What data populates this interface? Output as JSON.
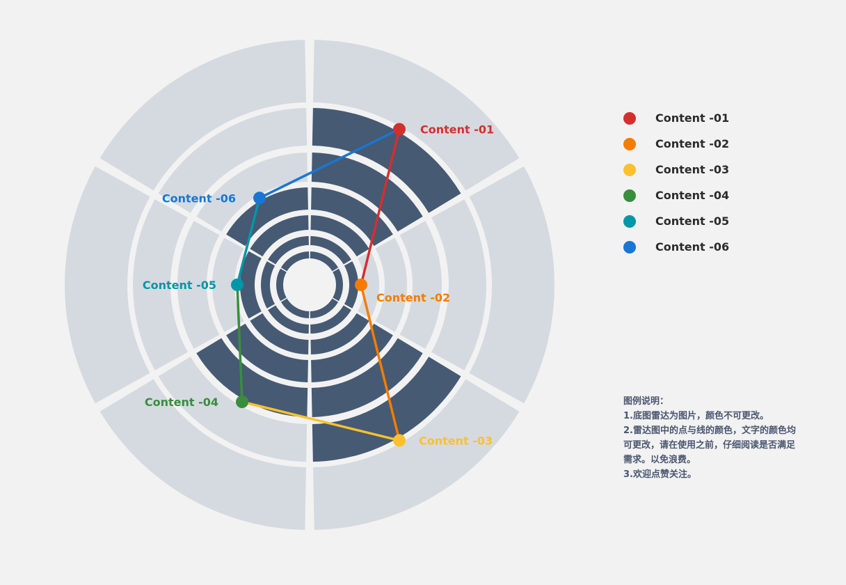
{
  "chart_data": {
    "type": "radar",
    "max": 6,
    "axes": [
      "Content -01",
      "Content -02",
      "Content -03",
      "Content -04",
      "Content -05",
      "Content -06"
    ],
    "values": [
      6,
      2,
      6,
      5,
      3,
      4
    ],
    "point_colors": [
      "#d32f2f",
      "#f57c00",
      "#fbc02d",
      "#388e3c",
      "#0097a7",
      "#1976d2"
    ],
    "line_colors": [
      "#d32f2f",
      "#f57c00",
      "#fbc02d",
      "#388e3c",
      "#0097a7",
      "#1976d2"
    ],
    "ring_fill_filled": "#465a73",
    "ring_fill_empty": "#d5dae0",
    "rings": 6
  },
  "legend": {
    "items": [
      {
        "label": "Content -01",
        "color": "#d32f2f"
      },
      {
        "label": "Content -02",
        "color": "#f57c00"
      },
      {
        "label": "Content -03",
        "color": "#fbc02d"
      },
      {
        "label": "Content -04",
        "color": "#388e3c"
      },
      {
        "label": "Content -05",
        "color": "#0097a7"
      },
      {
        "label": "Content -06",
        "color": "#1976d2"
      }
    ]
  },
  "notes": {
    "title": "图例说明：",
    "line1": "1.底图雷达为图片，颜色不可更改。",
    "line2": "2.雷达图中的点与线的颜色，文字的颜色均可更改，请在使用之前，仔细阅读是否满足需求。以免浪费。",
    "line3": "3.欢迎点赞关注。"
  }
}
